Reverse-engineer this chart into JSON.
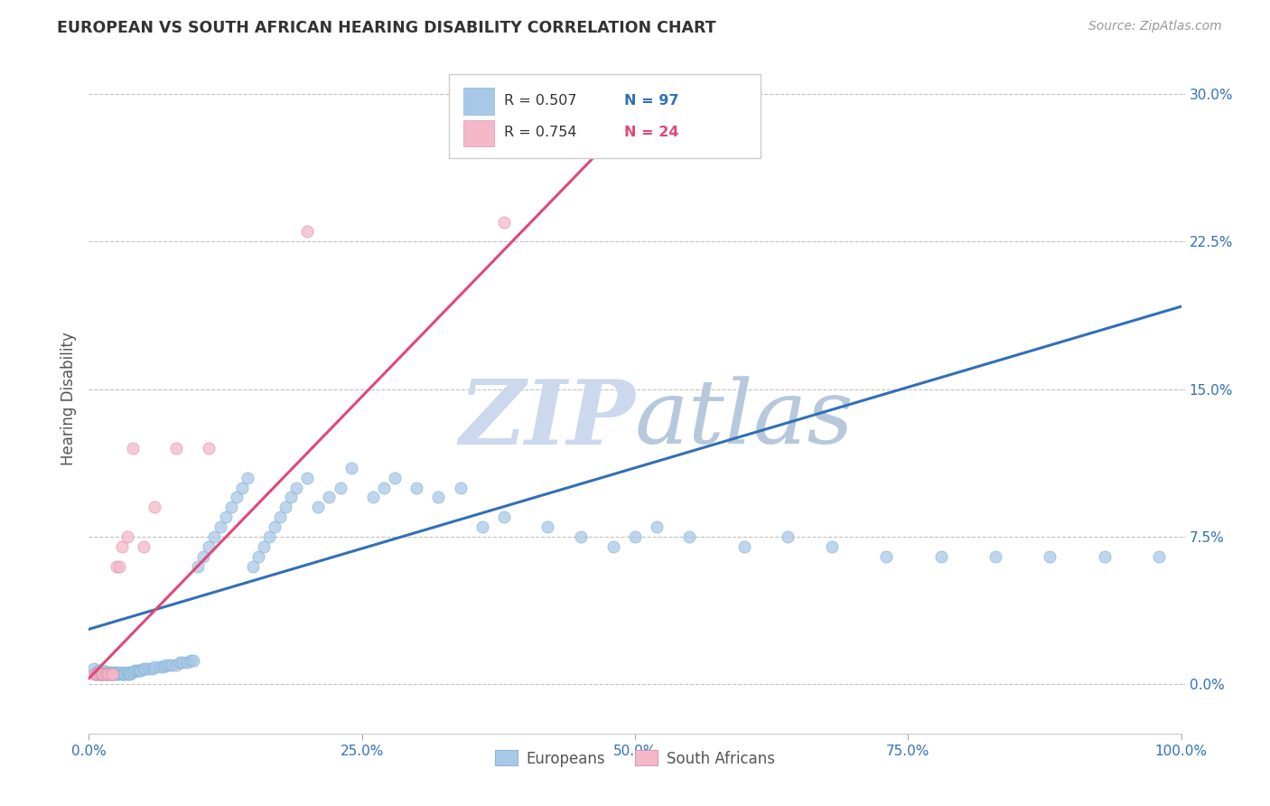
{
  "title": "EUROPEAN VS SOUTH AFRICAN HEARING DISABILITY CORRELATION CHART",
  "source": "Source: ZipAtlas.com",
  "ylabel": "Hearing Disability",
  "xlim": [
    0.0,
    1.0
  ],
  "ylim": [
    -0.025,
    0.315
  ],
  "xticks": [
    0.0,
    0.25,
    0.5,
    0.75,
    1.0
  ],
  "xtick_labels": [
    "0.0%",
    "25.0%",
    "50.0%",
    "75.0%",
    "100.0%"
  ],
  "yticks": [
    0.0,
    0.075,
    0.15,
    0.225,
    0.3
  ],
  "ytick_labels": [
    "0.0%",
    "7.5%",
    "15.0%",
    "22.5%",
    "30.0%"
  ],
  "blue_color": "#a8c8e8",
  "pink_color": "#f4b8c8",
  "blue_line_color": "#3070b8",
  "pink_line_color": "#e04878",
  "background_color": "#ffffff",
  "grid_color": "#bbbbbb",
  "title_color": "#333333",
  "watermark_color": "#ccd8ec",
  "watermark_text": "ZIPatlas",
  "europeans_label": "Europeans",
  "south_africans_label": "South Africans",
  "blue_line_x": [
    0.0,
    1.0
  ],
  "blue_line_y": [
    0.028,
    0.192
  ],
  "pink_line_x": [
    0.0,
    0.48
  ],
  "pink_line_y": [
    0.003,
    0.278
  ],
  "blue_scatter_x": [
    0.005,
    0.007,
    0.009,
    0.01,
    0.011,
    0.012,
    0.013,
    0.015,
    0.016,
    0.017,
    0.018,
    0.019,
    0.02,
    0.021,
    0.022,
    0.023,
    0.024,
    0.025,
    0.026,
    0.027,
    0.028,
    0.03,
    0.031,
    0.032,
    0.033,
    0.035,
    0.036,
    0.037,
    0.038,
    0.04,
    0.042,
    0.044,
    0.046,
    0.048,
    0.05,
    0.052,
    0.055,
    0.058,
    0.06,
    0.065,
    0.068,
    0.07,
    0.073,
    0.076,
    0.08,
    0.083,
    0.086,
    0.09,
    0.093,
    0.096,
    0.1,
    0.105,
    0.11,
    0.115,
    0.12,
    0.125,
    0.13,
    0.135,
    0.14,
    0.145,
    0.15,
    0.155,
    0.16,
    0.165,
    0.17,
    0.175,
    0.18,
    0.185,
    0.19,
    0.2,
    0.21,
    0.22,
    0.23,
    0.24,
    0.26,
    0.27,
    0.28,
    0.3,
    0.32,
    0.34,
    0.36,
    0.38,
    0.42,
    0.45,
    0.48,
    0.5,
    0.52,
    0.55,
    0.6,
    0.64,
    0.68,
    0.73,
    0.78,
    0.83,
    0.88,
    0.93,
    0.98
  ],
  "blue_scatter_y": [
    0.008,
    0.006,
    0.007,
    0.005,
    0.006,
    0.005,
    0.007,
    0.005,
    0.006,
    0.005,
    0.006,
    0.005,
    0.006,
    0.005,
    0.005,
    0.006,
    0.005,
    0.006,
    0.005,
    0.005,
    0.006,
    0.005,
    0.005,
    0.006,
    0.005,
    0.006,
    0.005,
    0.006,
    0.005,
    0.006,
    0.007,
    0.007,
    0.007,
    0.007,
    0.008,
    0.008,
    0.008,
    0.008,
    0.009,
    0.009,
    0.009,
    0.01,
    0.01,
    0.01,
    0.01,
    0.011,
    0.011,
    0.011,
    0.012,
    0.012,
    0.06,
    0.065,
    0.07,
    0.075,
    0.08,
    0.085,
    0.09,
    0.095,
    0.1,
    0.105,
    0.06,
    0.065,
    0.07,
    0.075,
    0.08,
    0.085,
    0.09,
    0.095,
    0.1,
    0.105,
    0.09,
    0.095,
    0.1,
    0.11,
    0.095,
    0.1,
    0.105,
    0.1,
    0.095,
    0.1,
    0.08,
    0.085,
    0.08,
    0.075,
    0.07,
    0.075,
    0.08,
    0.075,
    0.07,
    0.075,
    0.07,
    0.065,
    0.065,
    0.065,
    0.065,
    0.065,
    0.065
  ],
  "pink_scatter_x": [
    0.005,
    0.006,
    0.007,
    0.008,
    0.01,
    0.011,
    0.012,
    0.013,
    0.015,
    0.016,
    0.018,
    0.02,
    0.022,
    0.025,
    0.028,
    0.03,
    0.035,
    0.04,
    0.05,
    0.06,
    0.08,
    0.11,
    0.2,
    0.38
  ],
  "pink_scatter_y": [
    0.005,
    0.005,
    0.005,
    0.005,
    0.005,
    0.005,
    0.005,
    0.005,
    0.005,
    0.005,
    0.005,
    0.005,
    0.005,
    0.06,
    0.06,
    0.07,
    0.075,
    0.12,
    0.07,
    0.09,
    0.12,
    0.12,
    0.23,
    0.235
  ]
}
